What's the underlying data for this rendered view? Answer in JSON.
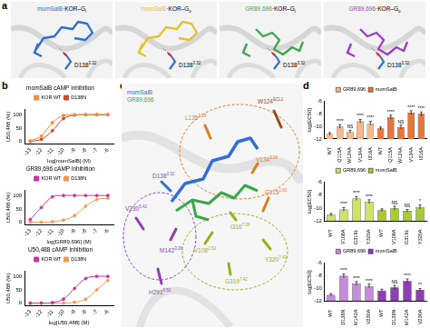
{
  "panel_labels": [
    "a",
    "b",
    "c",
    "d"
  ],
  "panel_a": {
    "complexes": [
      {
        "ligand": "momSalB",
        "receptor": "·KOR–G",
        "g": "i",
        "color": "#2f6fd6",
        "residue": "D138",
        "residue_sup": "3.32"
      },
      {
        "ligand": "momSalB",
        "receptor": "·KOR–G",
        "g": "o",
        "color": "#e6c229",
        "residue": "D138",
        "residue_sup": "3.32"
      },
      {
        "ligand": "GR89,696",
        "receptor": "·KOR–G",
        "g": "i",
        "color": "#3aa84a",
        "residue": "D138",
        "residue_sup": "3.32"
      },
      {
        "ligand": "GR89,696",
        "receptor": "·KOR–G",
        "g": "o",
        "color": "#9b3fc4",
        "residue": "D138",
        "residue_sup": "3.32"
      }
    ]
  },
  "panel_c": {
    "legend": [
      {
        "name": "momSalB",
        "color": "#2f6fd6"
      },
      {
        "name": "GR89,696",
        "color": "#3aa84a"
      }
    ],
    "residues": [
      {
        "label": "W124",
        "sup": "ECL1",
        "color": "#9c4a1a"
      },
      {
        "label": "L135",
        "sup": "3.29",
        "color": "#e07a1f"
      },
      {
        "label": "V134",
        "sup": "3.28",
        "color": "#e07a1f"
      },
      {
        "label": "Q115",
        "sup": "2.60",
        "color": "#e07a1f"
      },
      {
        "label": "D138",
        "sup": "3.32",
        "color": "#2f6fd6"
      },
      {
        "label": "I316",
        "sup": "7.39",
        "color": "#9aae1e"
      },
      {
        "label": "Y320",
        "sup": "7.43",
        "color": "#9aae1e"
      },
      {
        "label": "G319",
        "sup": "7.42",
        "color": "#9aae1e"
      },
      {
        "label": "V108",
        "sup": "2.53",
        "color": "#9aae1e"
      },
      {
        "label": "V230",
        "sup": "5.42",
        "color": "#8e3fb4"
      },
      {
        "label": "M142",
        "sup": "3.36",
        "color": "#8e3fb4"
      },
      {
        "label": "H291",
        "sup": "6.52",
        "color": "#8e3fb4"
      }
    ]
  },
  "chart_data": [
    {
      "type": "line",
      "title": "momSalB cAMP inhibition",
      "x_label": "log[momSalB] (M)",
      "y_label": "U50,488 (%)",
      "x": [
        -13,
        -12,
        -11,
        -10,
        -9,
        -8,
        -7,
        -6
      ],
      "xlim": [
        -13.5,
        -5.5
      ],
      "xticks": [
        -13,
        -12,
        -11,
        -10,
        -9,
        -8,
        -7,
        -6
      ],
      "ylim": [
        -10,
        120
      ],
      "yticks": [
        0,
        50,
        100
      ],
      "grid": false,
      "legend": "top",
      "marker": "circle",
      "line_style": "solid",
      "series": [
        {
          "name": "KOR WT",
          "color": "#f08c3c",
          "values": [
            2,
            20,
            70,
            97,
            100,
            100,
            100,
            100
          ]
        },
        {
          "name": "D138N",
          "color": "#d8452a",
          "values": [
            0,
            8,
            40,
            85,
            98,
            100,
            100,
            100
          ]
        }
      ]
    },
    {
      "type": "line",
      "title": "GR89,696 cAMP inhibition",
      "x_label": "log[GR89,696] (M)",
      "y_label": "U50,488 (%)",
      "x": [
        -13,
        -12,
        -11,
        -10,
        -9,
        -8,
        -7,
        -6
      ],
      "xlim": [
        -13.5,
        -5.5
      ],
      "xticks": [
        -13,
        -12,
        -11,
        -10,
        -9,
        -8,
        -7,
        -6
      ],
      "ylim": [
        -10,
        120
      ],
      "yticks": [
        0,
        50,
        100
      ],
      "grid": false,
      "legend": "top",
      "marker": "circle",
      "line_style": "solid",
      "series": [
        {
          "name": "KOR WT",
          "color": "#d12ea0",
          "values": [
            10,
            55,
            95,
            100,
            100,
            100,
            100,
            100
          ]
        },
        {
          "name": "D138N",
          "color": "#f39a4c",
          "values": [
            0,
            0,
            2,
            8,
            25,
            60,
            85,
            90
          ]
        }
      ]
    },
    {
      "type": "line",
      "title": "U50,488 cAMP inhibition",
      "x_label": "log[U50,488] (M)",
      "y_label": "U50,488 (%)",
      "x": [
        -13,
        -12,
        -11,
        -10,
        -9,
        -8,
        -7,
        -6
      ],
      "xlim": [
        -13.5,
        -5.5
      ],
      "xticks": [
        -13,
        -12,
        -11,
        -10,
        -9,
        -8,
        -7,
        -6
      ],
      "ylim": [
        -10,
        120
      ],
      "yticks": [
        0,
        50,
        100
      ],
      "grid": false,
      "legend": "top",
      "marker": "circle",
      "line_style": "solid",
      "series": [
        {
          "name": "KOR WT",
          "color": "#d12ea0",
          "values": [
            0,
            0,
            2,
            15,
            55,
            92,
            100,
            100
          ]
        },
        {
          "name": "D138N",
          "color": "#f39a4c",
          "values": [
            0,
            0,
            0,
            0,
            3,
            15,
            50,
            85
          ]
        }
      ]
    },
    {
      "type": "bar",
      "y_label": "log[EC50]",
      "categories": [
        "WT",
        "Q115A",
        "W124A",
        "V134A",
        "I316A",
        "WT",
        "Q115A",
        "W124A",
        "V134A",
        "I316A"
      ],
      "ylim": [
        -12,
        -6
      ],
      "yticks": [
        -12,
        -10,
        -8,
        -6
      ],
      "grid": false,
      "legend": "top",
      "series": [
        {
          "name": "GR89,696",
          "color": "#f6b98a",
          "values": [
            -11.2,
            -10.0,
            -10.8,
            -9.2,
            -9.5,
            null,
            null,
            null,
            null,
            null
          ],
          "errors": [
            0.2,
            0.3,
            0.2,
            0.3,
            0.3,
            null,
            null,
            null,
            null,
            null
          ],
          "sig": [
            null,
            "****",
            "NS",
            "****",
            "****",
            null,
            null,
            null,
            null,
            null
          ]
        },
        {
          "name": "momSalB",
          "color": "#e8743b",
          "values": [
            null,
            null,
            null,
            null,
            null,
            -10.3,
            -8.5,
            -10.1,
            -7.8,
            -8.0
          ],
          "errors": [
            null,
            null,
            null,
            null,
            null,
            0.2,
            0.3,
            0.3,
            0.3,
            0.3
          ],
          "sig": [
            null,
            null,
            null,
            null,
            null,
            null,
            "****",
            "NS",
            "****",
            "****"
          ]
        }
      ]
    },
    {
      "type": "bar",
      "y_label": "log[EC50]",
      "categories": [
        "WT",
        "V108A",
        "G319L",
        "Y320A",
        "WT",
        "V108A",
        "G319L",
        "Y320A"
      ],
      "ylim": [
        -12,
        -6
      ],
      "yticks": [
        -12,
        -10,
        -8,
        -6
      ],
      "grid": false,
      "legend": "top",
      "series": [
        {
          "name": "GR89,696",
          "color": "#cfe36b",
          "values": [
            -11.0,
            -10.2,
            -8.5,
            -9.0,
            null,
            null,
            null,
            null
          ],
          "errors": [
            0.2,
            0.3,
            0.3,
            0.3,
            null,
            null,
            null,
            null
          ],
          "sig": [
            null,
            "****",
            "****",
            "****",
            null,
            null,
            null,
            null
          ]
        },
        {
          "name": "momSalB",
          "color": "#a9c935",
          "values": [
            null,
            null,
            null,
            null,
            -10.3,
            -10.0,
            -10.4,
            -9.8
          ],
          "errors": [
            null,
            null,
            null,
            null,
            0.2,
            0.3,
            0.2,
            0.3
          ],
          "sig": [
            null,
            null,
            null,
            null,
            null,
            "NS",
            "NS",
            "*"
          ]
        }
      ]
    },
    {
      "type": "bar",
      "y_label": "log[EC50]",
      "categories": [
        "WT",
        "D138N",
        "M142A",
        "V230A",
        "WT",
        "D138N",
        "M142A",
        "V230A"
      ],
      "ylim": [
        -12,
        -6
      ],
      "yticks": [
        -12,
        -10,
        -8,
        -6
      ],
      "grid": false,
      "legend": "top",
      "series": [
        {
          "name": "GR89,696",
          "color": "#c58bdc",
          "values": [
            -11.0,
            -8.0,
            -9.2,
            -9.6,
            null,
            null,
            null,
            null
          ],
          "errors": [
            0.2,
            0.3,
            0.3,
            0.3,
            null,
            null,
            null,
            null
          ],
          "sig": [
            null,
            "****",
            "****",
            "****",
            null,
            null,
            null,
            null
          ]
        },
        {
          "name": "momSalB",
          "color": "#8e3fb4",
          "values": [
            null,
            null,
            null,
            null,
            -10.3,
            -9.8,
            -8.8,
            -10.2
          ],
          "errors": [
            null,
            null,
            null,
            null,
            0.2,
            0.3,
            0.3,
            0.2
          ],
          "sig": [
            null,
            null,
            null,
            null,
            null,
            "NS",
            "****",
            "**"
          ]
        }
      ]
    }
  ]
}
